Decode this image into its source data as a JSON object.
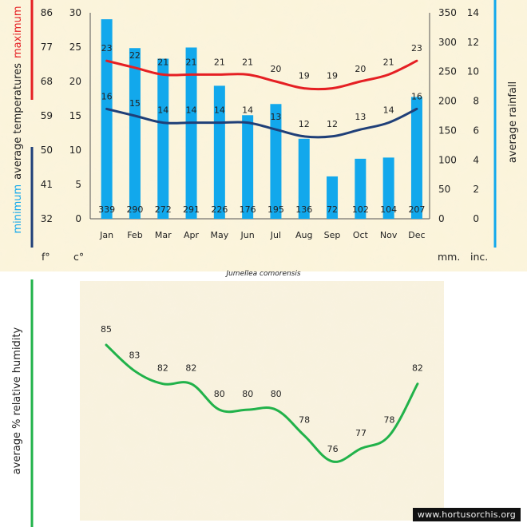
{
  "watermark": "www.hortusorchis.org",
  "colors": {
    "background": "#fbf3d6",
    "paper": "#f8f1dc",
    "bars": "#12a8ec",
    "max_line": "#e51f23",
    "min_line": "#1f3f78",
    "humidity_line": "#21b24a",
    "rain_axis": "#12a8ec",
    "temp_axis_max": "#e51f23",
    "temp_axis_min": "#1f3f78",
    "humidity_axis": "#21b24a"
  },
  "chart_data": [
    {
      "type": "bar",
      "title": "Jumellea comorensis",
      "categories": [
        "Jan",
        "Feb",
        "Mar",
        "Apr",
        "May",
        "Jun",
        "Jul",
        "Aug",
        "Sep",
        "Oct",
        "Nov",
        "Dec"
      ],
      "series": [
        {
          "name": "average rainfall (mm.)",
          "kind": "bar",
          "values": [
            339,
            290,
            272,
            291,
            226,
            176,
            195,
            136,
            72,
            102,
            104,
            207
          ]
        },
        {
          "name": "maximum average temperatures (c°)",
          "kind": "line",
          "values": [
            23,
            22,
            21,
            21,
            21,
            21,
            20,
            19,
            19,
            20,
            21,
            23
          ]
        },
        {
          "name": "minimum average temperatures (c°)",
          "kind": "line",
          "values": [
            16,
            15,
            14,
            14,
            14,
            14,
            13,
            12,
            12,
            13,
            14,
            16
          ]
        }
      ],
      "left_axis_f": {
        "label": "f°",
        "ticks": [
          "86",
          "77",
          "68",
          "59",
          "50",
          "41",
          "32"
        ]
      },
      "left_axis_c": {
        "label": "c°",
        "ticks": [
          "30",
          "25",
          "20",
          "15",
          "10",
          "5",
          "0"
        ],
        "ylim": [
          0,
          30
        ]
      },
      "right_axis_mm": {
        "label": "mm.",
        "ticks": [
          "350",
          "300",
          "250",
          "200",
          "150",
          "100",
          "50",
          "0"
        ],
        "ylim": [
          0,
          350
        ]
      },
      "right_axis_inc": {
        "label": "inc.",
        "ticks": [
          "14",
          "12",
          "10",
          "8",
          "6",
          "4",
          "2",
          "0"
        ],
        "ylim": [
          0,
          14
        ]
      },
      "ylabel_left": {
        "min_word": "minimum",
        "mid": "average temperatures",
        "max_word": "maximum"
      },
      "ylabel_right": "average rainfall"
    },
    {
      "type": "line",
      "categories": [
        "Jan",
        "Feb",
        "Mar",
        "Apr",
        "May",
        "Jun",
        "Jul",
        "Aug",
        "Sep",
        "Oct",
        "Nov",
        "Dec"
      ],
      "series": [
        {
          "name": "average % relative humidity",
          "values": [
            85,
            83,
            82,
            82,
            80,
            80,
            80,
            78,
            76,
            77,
            78,
            82
          ]
        }
      ],
      "ylabel": "average %  relative humidity",
      "ylim": [
        74,
        88
      ]
    }
  ]
}
